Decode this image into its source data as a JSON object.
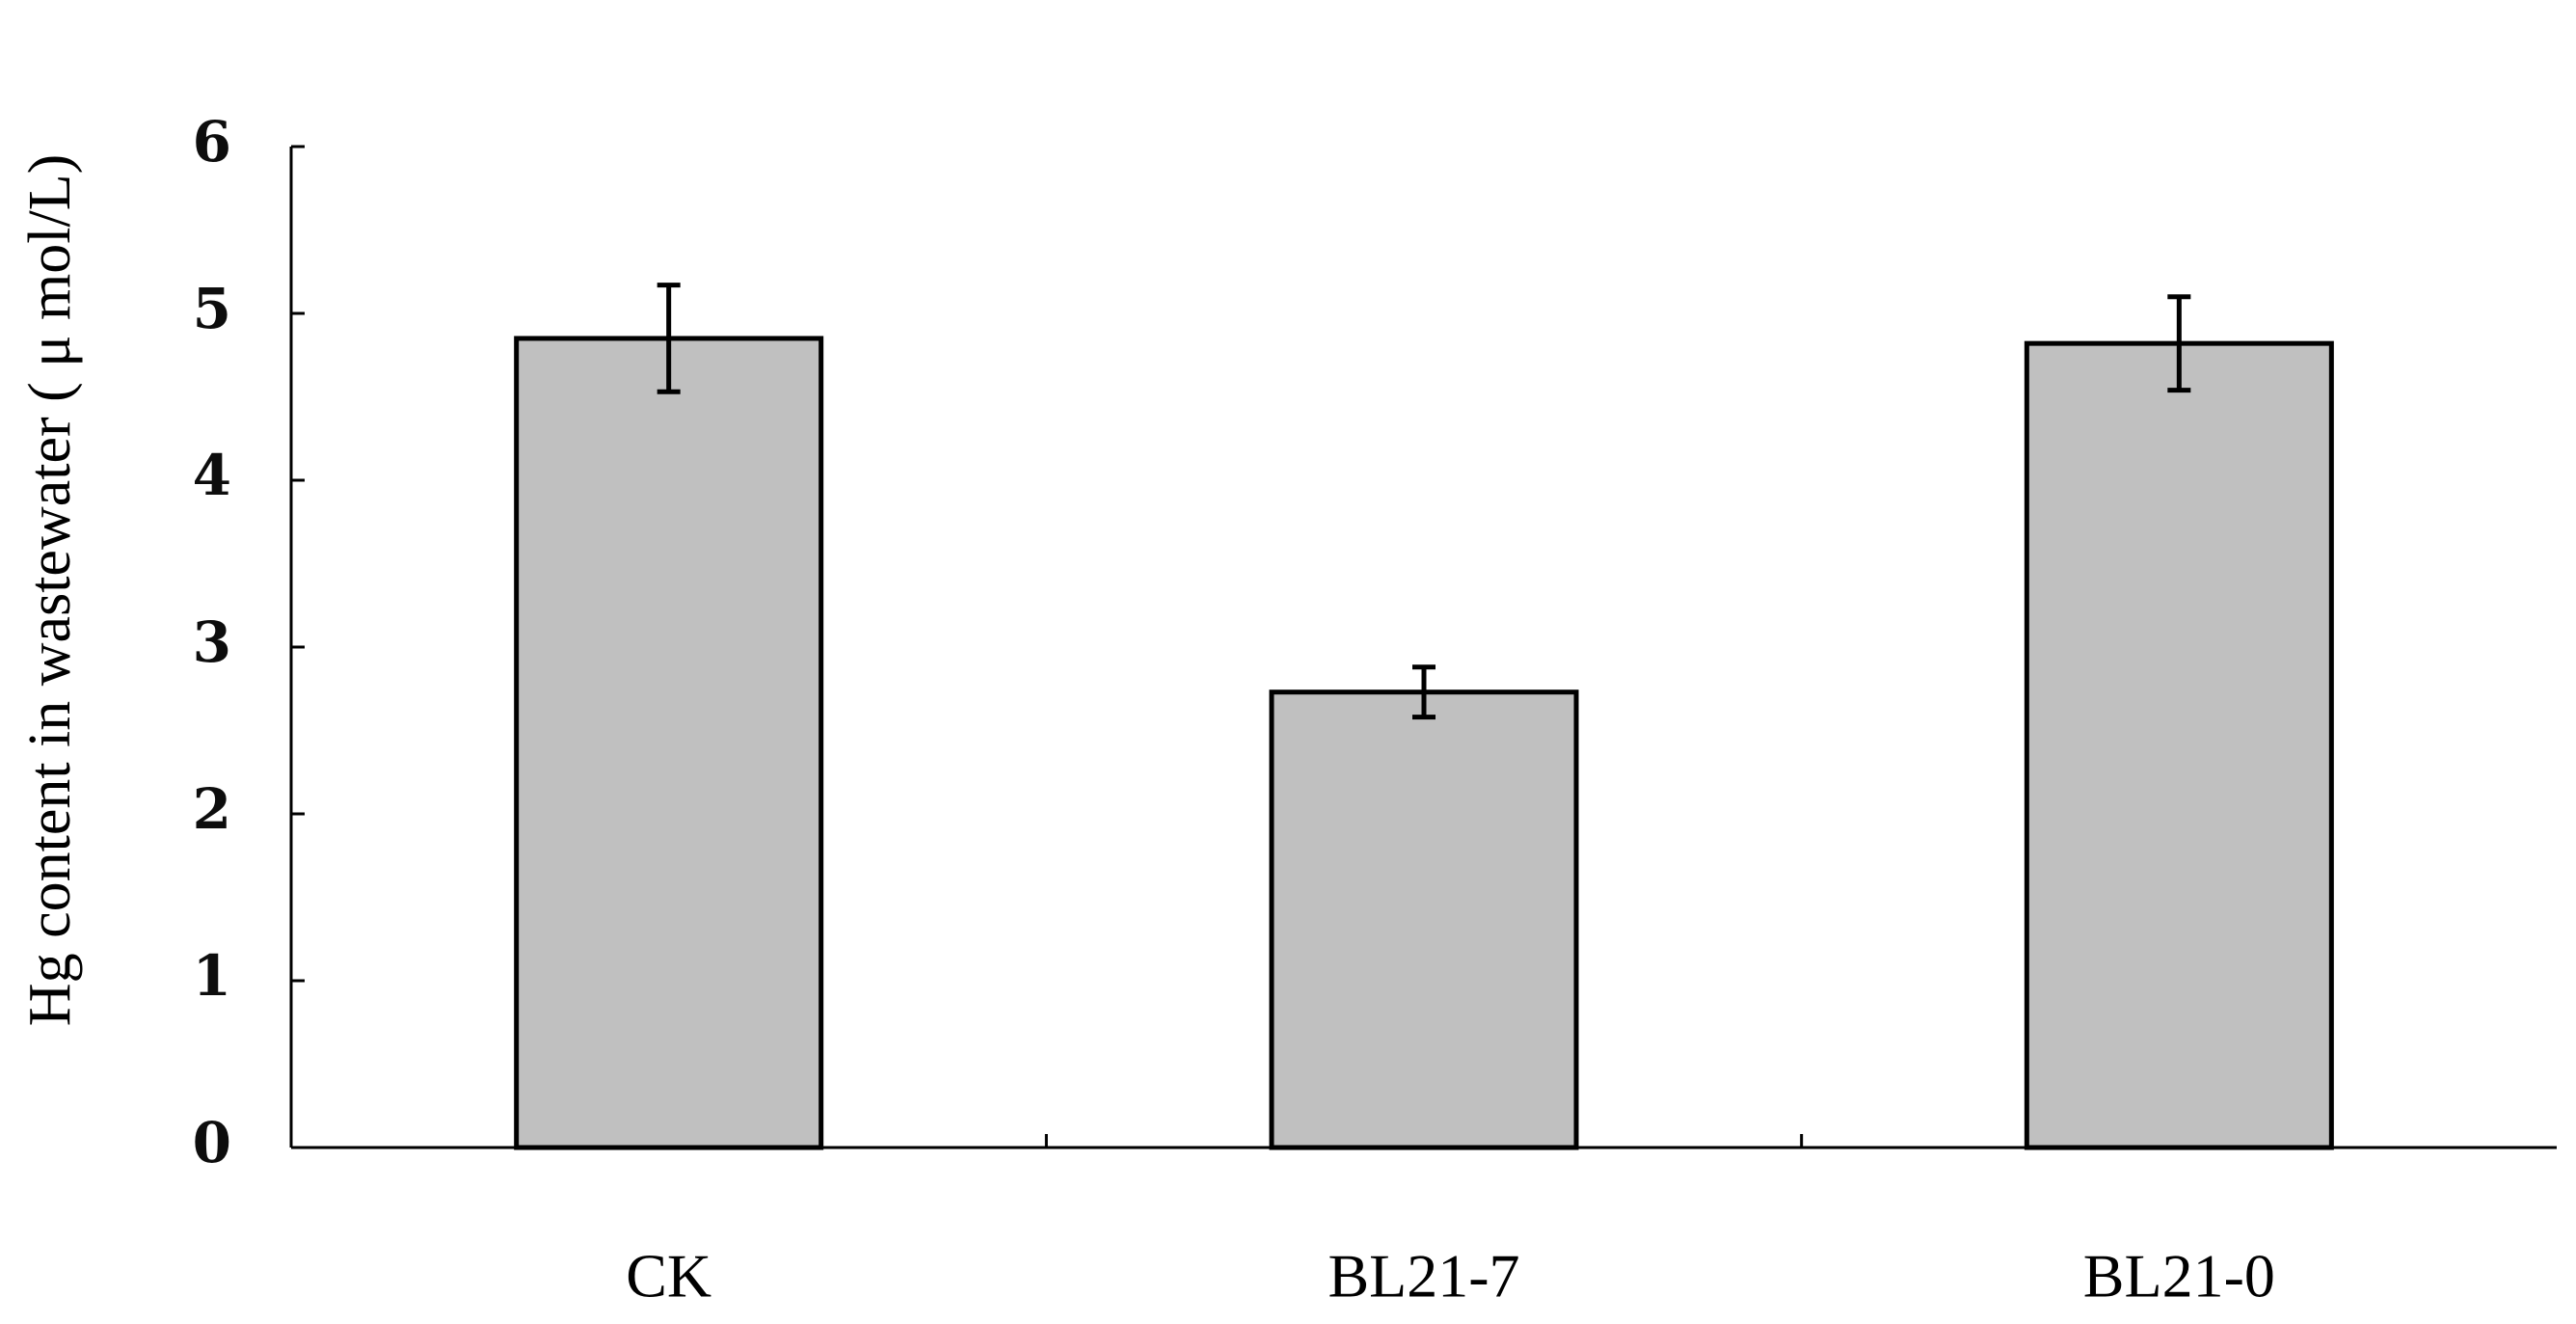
{
  "chart_data": {
    "type": "bar",
    "title": "",
    "xlabel": "",
    "ylabel": "Hg content in wastewater ( μ mol/L)",
    "categories": [
      "CK",
      "BL21-7",
      "BL21-0"
    ],
    "values": [
      4.85,
      2.73,
      4.82
    ],
    "error": [
      0.32,
      0.15,
      0.28
    ],
    "ylim": [
      0,
      6
    ],
    "yticks": [
      "0",
      "1",
      "2",
      "3",
      "4",
      "5",
      "6"
    ],
    "grid": false,
    "colors": {
      "bar_fill": "#c0c0c0",
      "bar_stroke": "#000000",
      "axis": "#000000"
    }
  }
}
